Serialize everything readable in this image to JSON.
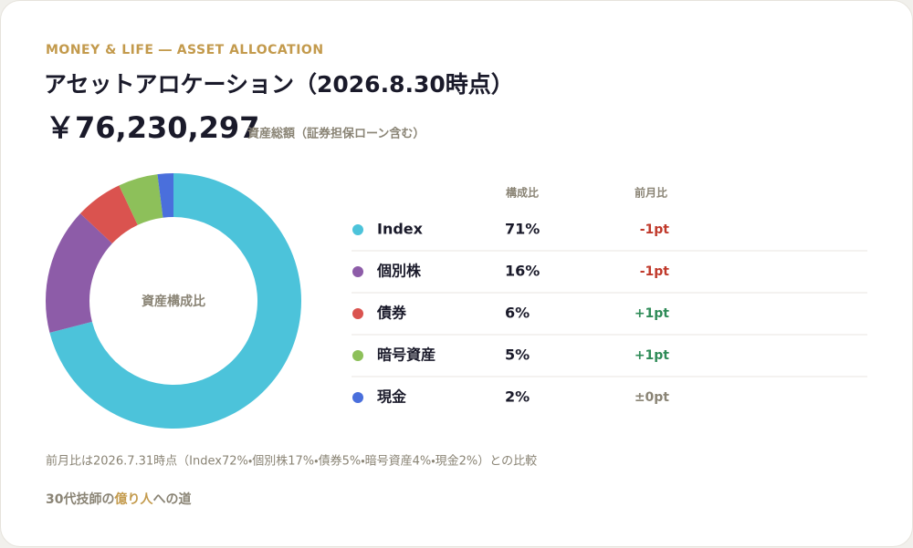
{
  "header": {
    "kicker": "MONEY & LIFE ― ASSET ALLOCATION",
    "title": "アセットアロケーション（2026.8.30時点）",
    "total": "￥76,230,297",
    "total_label": "資産総額（証券担保ローン含む）"
  },
  "chart_data": {
    "type": "donut",
    "center_label": "資産構成比",
    "categories": [
      "Index",
      "個別株",
      "債券",
      "暗号資産",
      "現金"
    ],
    "colors": [
      "#4cc3da",
      "#8d5ca8",
      "#da534f",
      "#8dc05a",
      "#4a6fdc"
    ],
    "series": [
      {
        "name": "構成比",
        "values": [
          71,
          16,
          6,
          5,
          2
        ],
        "value_labels": [
          "71%",
          "16%",
          "6%",
          "5%",
          "2%"
        ]
      },
      {
        "name": "前月比",
        "values": [
          -1,
          -1,
          1,
          1,
          0
        ],
        "value_labels": [
          "-1pt",
          "-1pt",
          "+1pt",
          "+1pt",
          "±0pt"
        ]
      }
    ]
  },
  "note": "前月比は2026.7.31時点（Index72%・個別株17%・債券5%・暗号資産4%・現金2%）との比較",
  "footer": {
    "before": "30代技師の",
    "highlight": "億り人",
    "after": "への道"
  }
}
